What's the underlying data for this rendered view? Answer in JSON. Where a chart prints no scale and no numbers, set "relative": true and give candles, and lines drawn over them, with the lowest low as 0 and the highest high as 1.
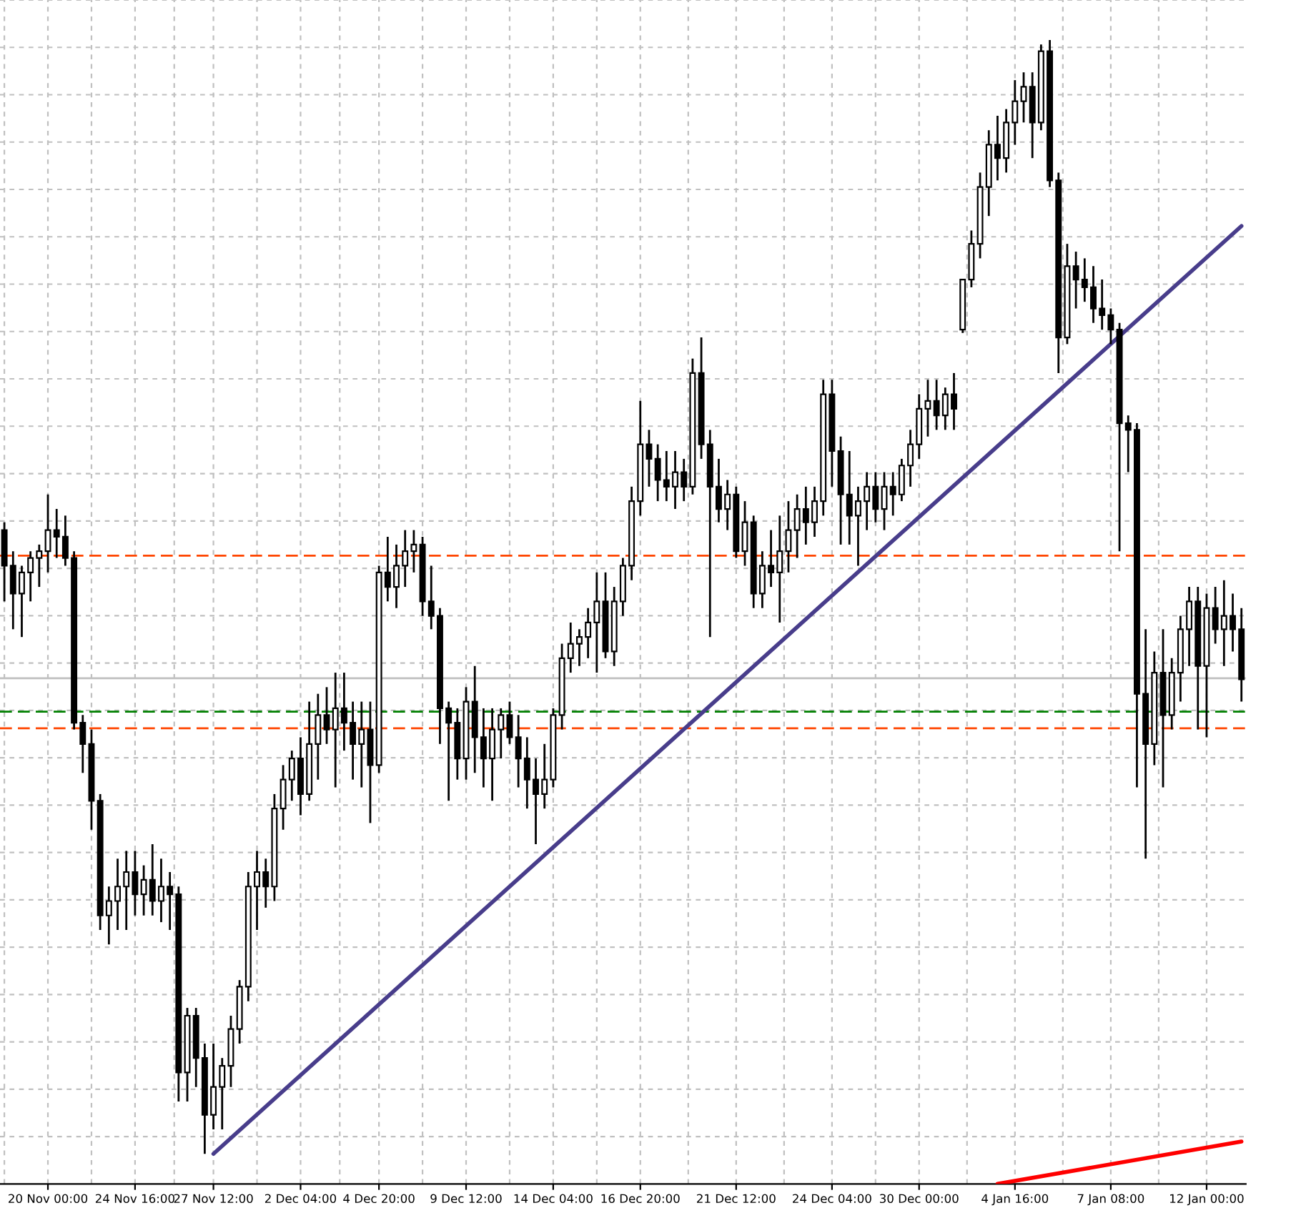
{
  "chart_data": {
    "type": "candlestick",
    "relative": true,
    "categories": [
      null,
      null,
      null,
      null,
      null,
      "20 Nov 00:00",
      null,
      null,
      null,
      null,
      null,
      null,
      null,
      null,
      null,
      "24 Nov 16:00",
      null,
      null,
      null,
      null,
      null,
      null,
      null,
      null,
      "27 Nov 12:00",
      null,
      null,
      null,
      null,
      null,
      null,
      null,
      null,
      null,
      "2 Dec 04:00",
      null,
      null,
      null,
      null,
      null,
      null,
      null,
      null,
      "4 Dec 20:00",
      null,
      null,
      null,
      null,
      null,
      null,
      null,
      null,
      null,
      "9 Dec 12:00",
      null,
      null,
      null,
      null,
      null,
      null,
      null,
      null,
      null,
      "14 Dec 04:00",
      null,
      null,
      null,
      null,
      null,
      null,
      null,
      null,
      null,
      "16 Dec 20:00",
      null,
      null,
      null,
      null,
      null,
      null,
      null,
      null,
      null,
      null,
      "21 Dec 12:00",
      null,
      null,
      null,
      null,
      null,
      null,
      null,
      null,
      null,
      null,
      "24 Dec 04:00",
      null,
      null,
      null,
      null,
      null,
      null,
      null,
      null,
      null,
      "30 Dec 00:00",
      null,
      null,
      null,
      null,
      null,
      null,
      null,
      null,
      null,
      null,
      "4 Jan 16:00",
      null,
      null,
      null,
      null,
      null,
      null,
      null,
      null,
      null,
      null,
      "7 Jan 08:00",
      null,
      null,
      null,
      null,
      null,
      null,
      null,
      null,
      null,
      null,
      "12 Jan 00:00",
      null,
      null,
      null,
      null
    ],
    "ohlc": [
      [
        0.56,
        0.567,
        0.496,
        0.528
      ],
      [
        0.528,
        0.541,
        0.471,
        0.503
      ],
      [
        0.503,
        0.528,
        0.464,
        0.522
      ],
      [
        0.522,
        0.541,
        0.496,
        0.535
      ],
      [
        0.535,
        0.547,
        0.509,
        0.541
      ],
      [
        0.541,
        0.592,
        0.522,
        0.56
      ],
      [
        0.56,
        0.579,
        0.535,
        0.554
      ],
      [
        0.554,
        0.573,
        0.528,
        0.535
      ],
      [
        0.535,
        0.541,
        0.381,
        0.387
      ],
      [
        0.387,
        0.394,
        0.342,
        0.368
      ],
      [
        0.368,
        0.381,
        0.291,
        0.317
      ],
      [
        0.317,
        0.323,
        0.201,
        0.214
      ],
      [
        0.214,
        0.24,
        0.188,
        0.227
      ],
      [
        0.227,
        0.265,
        0.201,
        0.24
      ],
      [
        0.24,
        0.272,
        0.201,
        0.253
      ],
      [
        0.253,
        0.272,
        0.214,
        0.233
      ],
      [
        0.233,
        0.259,
        0.214,
        0.246
      ],
      [
        0.246,
        0.278,
        0.214,
        0.227
      ],
      [
        0.227,
        0.265,
        0.208,
        0.24
      ],
      [
        0.24,
        0.253,
        0.201,
        0.233
      ],
      [
        0.233,
        0.24,
        0.047,
        0.073
      ],
      [
        0.073,
        0.131,
        0.047,
        0.124
      ],
      [
        0.124,
        0.131,
        0.06,
        0.086
      ],
      [
        0.086,
        0.099,
        0,
        0.035
      ],
      [
        0.035,
        0.099,
        0.022,
        0.06
      ],
      [
        0.06,
        0.086,
        0.022,
        0.079
      ],
      [
        0.079,
        0.124,
        0.06,
        0.112
      ],
      [
        0.112,
        0.156,
        0.099,
        0.15
      ],
      [
        0.15,
        0.253,
        0.137,
        0.24
      ],
      [
        0.24,
        0.272,
        0.201,
        0.253
      ],
      [
        0.253,
        0.265,
        0.221,
        0.24
      ],
      [
        0.24,
        0.323,
        0.227,
        0.31
      ],
      [
        0.31,
        0.349,
        0.291,
        0.336
      ],
      [
        0.336,
        0.362,
        0.317,
        0.355
      ],
      [
        0.355,
        0.374,
        0.304,
        0.323
      ],
      [
        0.323,
        0.406,
        0.317,
        0.368
      ],
      [
        0.368,
        0.413,
        0.336,
        0.394
      ],
      [
        0.394,
        0.419,
        0.368,
        0.381
      ],
      [
        0.381,
        0.432,
        0.329,
        0.4
      ],
      [
        0.4,
        0.432,
        0.362,
        0.387
      ],
      [
        0.387,
        0.406,
        0.336,
        0.368
      ],
      [
        0.368,
        0.406,
        0.329,
        0.381
      ],
      [
        0.381,
        0.406,
        0.297,
        0.349
      ],
      [
        0.349,
        0.528,
        0.342,
        0.522
      ],
      [
        0.522,
        0.554,
        0.496,
        0.509
      ],
      [
        0.509,
        0.547,
        0.49,
        0.528
      ],
      [
        0.528,
        0.56,
        0.509,
        0.541
      ],
      [
        0.541,
        0.56,
        0.522,
        0.547
      ],
      [
        0.547,
        0.554,
        0.483,
        0.496
      ],
      [
        0.496,
        0.528,
        0.471,
        0.483
      ],
      [
        0.483,
        0.49,
        0.368,
        0.4
      ],
      [
        0.4,
        0.406,
        0.317,
        0.387
      ],
      [
        0.387,
        0.4,
        0.336,
        0.355
      ],
      [
        0.355,
        0.419,
        0.336,
        0.406
      ],
      [
        0.406,
        0.438,
        0.342,
        0.374
      ],
      [
        0.374,
        0.4,
        0.329,
        0.355
      ],
      [
        0.355,
        0.4,
        0.317,
        0.381
      ],
      [
        0.381,
        0.4,
        0.355,
        0.394
      ],
      [
        0.394,
        0.406,
        0.368,
        0.374
      ],
      [
        0.374,
        0.394,
        0.329,
        0.355
      ],
      [
        0.355,
        0.374,
        0.31,
        0.336
      ],
      [
        0.336,
        0.355,
        0.278,
        0.323
      ],
      [
        0.323,
        0.368,
        0.31,
        0.336
      ],
      [
        0.336,
        0.4,
        0.329,
        0.394
      ],
      [
        0.394,
        0.458,
        0.381,
        0.445
      ],
      [
        0.445,
        0.477,
        0.432,
        0.458
      ],
      [
        0.458,
        0.471,
        0.438,
        0.464
      ],
      [
        0.464,
        0.49,
        0.445,
        0.477
      ],
      [
        0.477,
        0.522,
        0.432,
        0.496
      ],
      [
        0.496,
        0.522,
        0.445,
        0.451
      ],
      [
        0.451,
        0.509,
        0.438,
        0.496
      ],
      [
        0.496,
        0.535,
        0.483,
        0.528
      ],
      [
        0.528,
        0.599,
        0.515,
        0.586
      ],
      [
        0.586,
        0.676,
        0.573,
        0.637
      ],
      [
        0.637,
        0.65,
        0.599,
        0.624
      ],
      [
        0.624,
        0.637,
        0.586,
        0.605
      ],
      [
        0.605,
        0.631,
        0.586,
        0.599
      ],
      [
        0.599,
        0.631,
        0.579,
        0.612
      ],
      [
        0.612,
        0.624,
        0.586,
        0.599
      ],
      [
        0.599,
        0.714,
        0.592,
        0.701
      ],
      [
        0.701,
        0.733,
        0.624,
        0.637
      ],
      [
        0.637,
        0.65,
        0.464,
        0.599
      ],
      [
        0.599,
        0.624,
        0.567,
        0.579
      ],
      [
        0.579,
        0.605,
        0.56,
        0.592
      ],
      [
        0.592,
        0.599,
        0.535,
        0.541
      ],
      [
        0.541,
        0.586,
        0.528,
        0.567
      ],
      [
        0.567,
        0.573,
        0.49,
        0.503
      ],
      [
        0.503,
        0.541,
        0.49,
        0.528
      ],
      [
        0.528,
        0.56,
        0.509,
        0.522
      ],
      [
        0.522,
        0.573,
        0.477,
        0.541
      ],
      [
        0.541,
        0.586,
        0.522,
        0.56
      ],
      [
        0.56,
        0.592,
        0.535,
        0.579
      ],
      [
        0.579,
        0.599,
        0.547,
        0.567
      ],
      [
        0.567,
        0.599,
        0.554,
        0.586
      ],
      [
        0.586,
        0.695,
        0.573,
        0.682
      ],
      [
        0.682,
        0.695,
        0.599,
        0.631
      ],
      [
        0.631,
        0.644,
        0.547,
        0.592
      ],
      [
        0.592,
        0.631,
        0.547,
        0.573
      ],
      [
        0.573,
        0.599,
        0.528,
        0.586
      ],
      [
        0.586,
        0.612,
        0.56,
        0.599
      ],
      [
        0.599,
        0.612,
        0.567,
        0.579
      ],
      [
        0.579,
        0.612,
        0.56,
        0.599
      ],
      [
        0.599,
        0.612,
        0.573,
        0.592
      ],
      [
        0.592,
        0.624,
        0.586,
        0.618
      ],
      [
        0.618,
        0.65,
        0.599,
        0.637
      ],
      [
        0.637,
        0.682,
        0.624,
        0.669
      ],
      [
        0.669,
        0.695,
        0.644,
        0.676
      ],
      [
        0.676,
        0.695,
        0.65,
        0.663
      ],
      [
        0.663,
        0.688,
        0.65,
        0.682
      ],
      [
        0.682,
        0.701,
        0.65,
        0.669
      ],
      [
        0.74,
        0.785,
        0.737,
        0.785
      ],
      [
        0.785,
        0.829,
        0.778,
        0.817
      ],
      [
        0.817,
        0.881,
        0.804,
        0.868
      ],
      [
        0.868,
        0.919,
        0.842,
        0.906
      ],
      [
        0.906,
        0.932,
        0.874,
        0.894
      ],
      [
        0.894,
        0.938,
        0.881,
        0.926
      ],
      [
        0.926,
        0.964,
        0.906,
        0.945
      ],
      [
        0.945,
        0.971,
        0.926,
        0.958
      ],
      [
        0.958,
        0.971,
        0.894,
        0.926
      ],
      [
        0.926,
        0.996,
        0.919,
        0.99
      ],
      [
        0.99,
        1.0,
        0.868,
        0.874
      ],
      [
        0.874,
        0.881,
        0.701,
        0.733
      ],
      [
        0.733,
        0.817,
        0.727,
        0.797
      ],
      [
        0.797,
        0.81,
        0.759,
        0.785
      ],
      [
        0.785,
        0.804,
        0.765,
        0.778
      ],
      [
        0.778,
        0.797,
        0.746,
        0.759
      ],
      [
        0.759,
        0.785,
        0.74,
        0.753
      ],
      [
        0.753,
        0.759,
        0.727,
        0.74
      ],
      [
        0.74,
        0.746,
        0.541,
        0.656
      ],
      [
        0.656,
        0.663,
        0.612,
        0.65
      ],
      [
        0.65,
        0.656,
        0.329,
        0.413
      ],
      [
        0.413,
        0.471,
        0.265,
        0.368
      ],
      [
        0.368,
        0.451,
        0.349,
        0.432
      ],
      [
        0.432,
        0.471,
        0.329,
        0.394
      ],
      [
        0.394,
        0.445,
        0.381,
        0.432
      ],
      [
        0.432,
        0.483,
        0.406,
        0.471
      ],
      [
        0.471,
        0.509,
        0.438,
        0.496
      ],
      [
        0.496,
        0.509,
        0.381,
        0.438
      ],
      [
        0.438,
        0.503,
        0.374,
        0.49
      ],
      [
        0.49,
        0.509,
        0.458,
        0.471
      ],
      [
        0.471,
        0.515,
        0.438,
        0.483
      ],
      [
        0.483,
        0.503,
        0.451,
        0.471
      ],
      [
        0.471,
        0.49,
        0.406,
        0.426
      ]
    ],
    "series": [
      {
        "type": "line",
        "color": "#483d8b",
        "values": [
          null,
          null,
          null,
          null,
          null,
          null,
          null,
          null,
          null,
          null,
          null,
          null,
          null,
          null,
          null,
          null,
          null,
          null,
          null,
          null,
          null,
          null,
          null,
          null,
          0,
          null,
          null,
          null,
          null,
          null,
          null,
          null,
          null,
          null,
          null,
          null,
          null,
          null,
          null,
          null,
          null,
          null,
          null,
          null,
          null,
          null,
          null,
          null,
          null,
          null,
          null,
          null,
          null,
          null,
          null,
          null,
          null,
          null,
          null,
          null,
          null,
          null,
          null,
          null,
          null,
          null,
          null,
          null,
          null,
          null,
          null,
          null,
          null,
          null,
          null,
          null,
          null,
          null,
          null,
          null,
          null,
          null,
          null,
          null,
          null,
          null,
          null,
          null,
          null,
          null,
          null,
          null,
          null,
          null,
          null,
          null,
          null,
          null,
          null,
          null,
          null,
          null,
          null,
          null,
          null,
          null,
          null,
          null,
          null,
          null,
          null,
          null,
          null,
          null,
          null,
          null,
          null,
          null,
          null,
          null,
          null,
          null,
          null,
          null,
          null,
          null,
          null,
          null,
          null,
          null,
          null,
          null,
          null,
          null,
          null,
          null,
          null,
          null,
          null,
          null,
          null,
          null,
          0.833
        ]
      },
      {
        "type": "line",
        "color": "#ff0000",
        "values": [
          null,
          null,
          null,
          null,
          null,
          null,
          null,
          null,
          null,
          null,
          null,
          null,
          null,
          null,
          null,
          null,
          null,
          null,
          null,
          null,
          null,
          null,
          null,
          null,
          null,
          null,
          null,
          null,
          null,
          null,
          null,
          null,
          null,
          null,
          null,
          null,
          null,
          null,
          null,
          null,
          null,
          null,
          null,
          null,
          null,
          null,
          null,
          null,
          null,
          null,
          null,
          null,
          null,
          null,
          null,
          null,
          null,
          null,
          null,
          null,
          null,
          null,
          null,
          null,
          null,
          null,
          null,
          null,
          null,
          null,
          null,
          null,
          null,
          null,
          null,
          null,
          null,
          null,
          null,
          null,
          null,
          null,
          null,
          null,
          null,
          null,
          null,
          null,
          null,
          null,
          null,
          null,
          null,
          null,
          null,
          null,
          null,
          null,
          null,
          null,
          null,
          null,
          null,
          null,
          null,
          null,
          null,
          null,
          null,
          null,
          null,
          null,
          null,
          null,
          -0.027,
          null,
          null,
          null,
          null,
          null,
          null,
          null,
          null,
          null,
          null,
          null,
          null,
          null,
          null,
          null,
          null,
          null,
          null,
          null,
          null,
          null,
          null,
          null,
          null,
          null,
          null,
          null,
          0.011
        ]
      }
    ],
    "ref_lines": [
      {
        "axis": "y",
        "value": 0.537,
        "color": "#ff4500",
        "line_style": "dashed"
      },
      {
        "axis": "y",
        "value": 0.427,
        "color": "#c0c0c0",
        "line_style": "solid"
      },
      {
        "axis": "y",
        "value": 0.397,
        "color": "#008000",
        "line_style": "dashed"
      },
      {
        "axis": "y",
        "value": 0.382,
        "color": "#ff4500",
        "line_style": "dashed"
      }
    ],
    "grid": true,
    "legend": false
  }
}
